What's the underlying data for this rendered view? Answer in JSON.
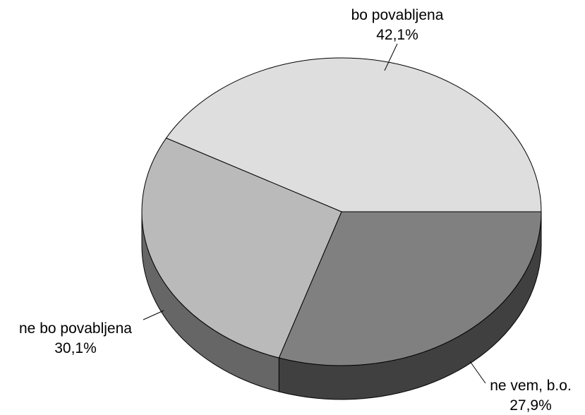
{
  "chart_data": {
    "type": "pie",
    "style": "3d",
    "title": "",
    "slices": [
      {
        "label": "bo povabljena",
        "value": 42.1,
        "value_label": "42,1%",
        "color": "#dedede",
        "side_color": "#9a9a9a"
      },
      {
        "label": "ne vem, b.o.",
        "value": 27.9,
        "value_label": "27,9%",
        "color": "#bababa",
        "side_color": "#666666"
      },
      {
        "label": "ne bo povabljena",
        "value": 30.1,
        "value_label": "30,1%",
        "color": "#808080",
        "side_color": "#404040"
      }
    ],
    "legend": "none"
  }
}
